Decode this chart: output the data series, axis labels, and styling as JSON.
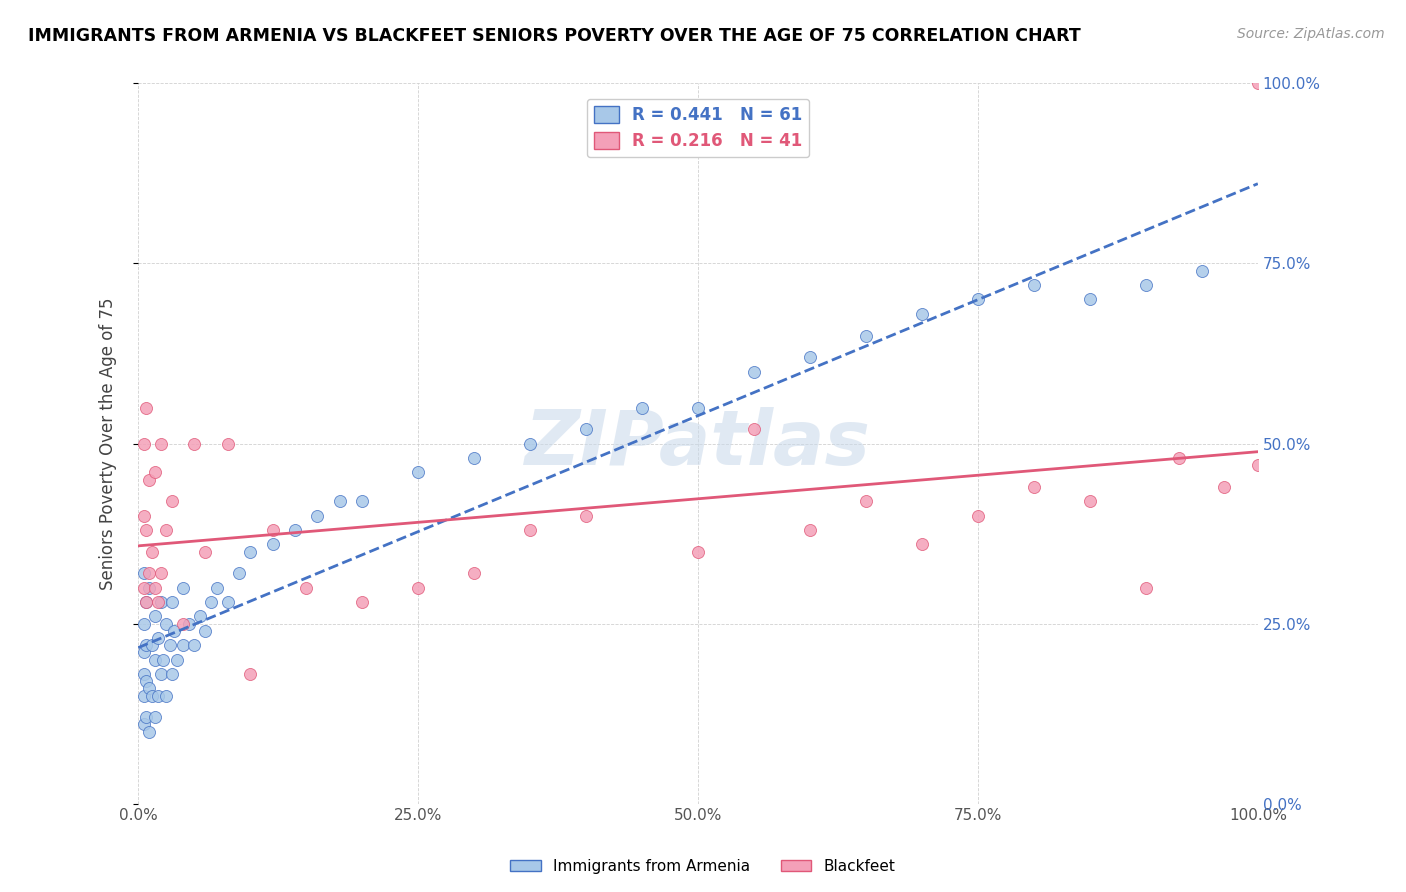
{
  "title": "IMMIGRANTS FROM ARMENIA VS BLACKFEET SENIORS POVERTY OVER THE AGE OF 75 CORRELATION CHART",
  "source": "Source: ZipAtlas.com",
  "ylabel": "Seniors Poverty Over the Age of 75",
  "legend_label_1": "Immigrants from Armenia",
  "legend_label_2": "Blackfeet",
  "r1": 0.441,
  "n1": 61,
  "r2": 0.216,
  "n2": 41,
  "color1": "#a8c8e8",
  "color2": "#f4a0b8",
  "line_color1": "#4472c4",
  "line_color2": "#e05878",
  "watermark": "ZIPatlas",
  "xtick_labels": [
    "0.0%",
    "25.0%",
    "50.0%",
    "75.0%",
    "100.0%"
  ],
  "ytick_labels_right": [
    "0.0%",
    "25.0%",
    "50.0%",
    "75.0%",
    "100.0%"
  ],
  "blue_x": [
    0.005,
    0.005,
    0.005,
    0.005,
    0.005,
    0.005,
    0.007,
    0.007,
    0.007,
    0.007,
    0.01,
    0.01,
    0.01,
    0.012,
    0.012,
    0.015,
    0.015,
    0.015,
    0.018,
    0.018,
    0.02,
    0.02,
    0.022,
    0.025,
    0.025,
    0.028,
    0.03,
    0.03,
    0.032,
    0.035,
    0.04,
    0.04,
    0.045,
    0.05,
    0.055,
    0.06,
    0.065,
    0.07,
    0.08,
    0.09,
    0.1,
    0.12,
    0.14,
    0.16,
    0.18,
    0.2,
    0.25,
    0.3,
    0.35,
    0.4,
    0.45,
    0.5,
    0.55,
    0.6,
    0.65,
    0.7,
    0.75,
    0.8,
    0.85,
    0.9,
    0.95
  ],
  "blue_y": [
    0.11,
    0.15,
    0.18,
    0.21,
    0.25,
    0.32,
    0.12,
    0.17,
    0.22,
    0.28,
    0.1,
    0.16,
    0.3,
    0.15,
    0.22,
    0.12,
    0.2,
    0.26,
    0.15,
    0.23,
    0.18,
    0.28,
    0.2,
    0.15,
    0.25,
    0.22,
    0.18,
    0.28,
    0.24,
    0.2,
    0.22,
    0.3,
    0.25,
    0.22,
    0.26,
    0.24,
    0.28,
    0.3,
    0.28,
    0.32,
    0.35,
    0.36,
    0.38,
    0.4,
    0.42,
    0.42,
    0.46,
    0.48,
    0.5,
    0.52,
    0.55,
    0.55,
    0.6,
    0.62,
    0.65,
    0.68,
    0.7,
    0.72,
    0.7,
    0.72,
    0.74
  ],
  "pink_x": [
    0.005,
    0.005,
    0.005,
    0.007,
    0.007,
    0.007,
    0.01,
    0.01,
    0.012,
    0.015,
    0.015,
    0.018,
    0.02,
    0.02,
    0.025,
    0.03,
    0.04,
    0.05,
    0.06,
    0.08,
    0.1,
    0.12,
    0.15,
    0.2,
    0.25,
    0.3,
    0.35,
    0.4,
    0.5,
    0.55,
    0.6,
    0.65,
    0.7,
    0.75,
    0.8,
    0.85,
    0.9,
    0.93,
    0.97,
    1.0,
    1.0
  ],
  "pink_y": [
    0.3,
    0.4,
    0.5,
    0.28,
    0.38,
    0.55,
    0.32,
    0.45,
    0.35,
    0.3,
    0.46,
    0.28,
    0.32,
    0.5,
    0.38,
    0.42,
    0.25,
    0.5,
    0.35,
    0.5,
    0.18,
    0.38,
    0.3,
    0.28,
    0.3,
    0.32,
    0.38,
    0.4,
    0.35,
    0.52,
    0.38,
    0.42,
    0.36,
    0.4,
    0.44,
    0.42,
    0.3,
    0.48,
    0.44,
    0.47,
    1.0
  ]
}
